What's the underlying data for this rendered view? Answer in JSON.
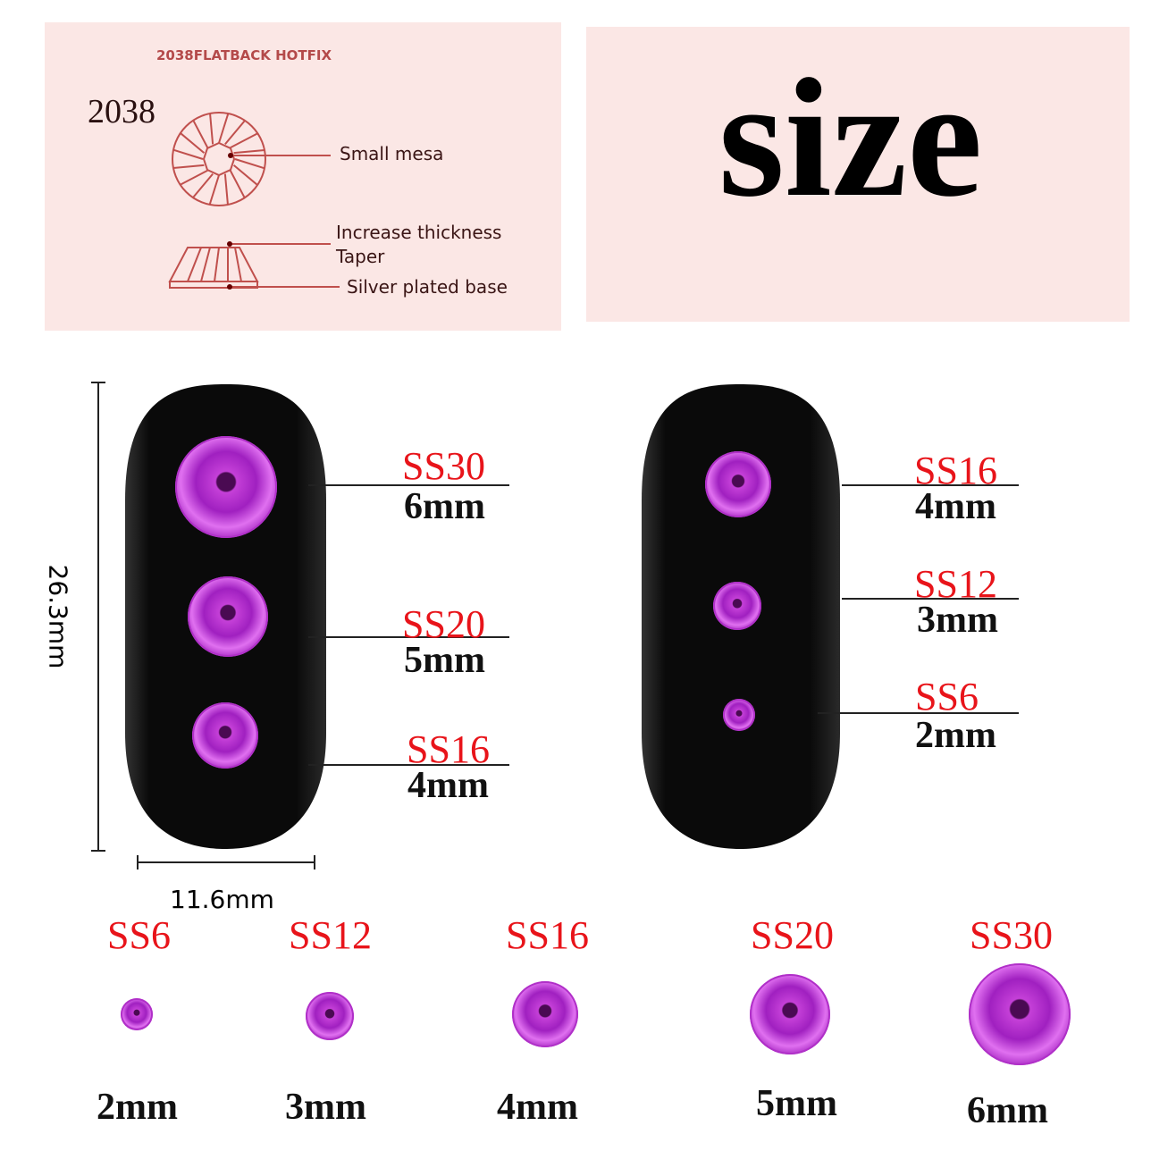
{
  "diagram": {
    "header_label": "2038FLATBACK HOTFIX",
    "model": "2038",
    "parts": [
      "Small mesa",
      "Increase thickness",
      "Taper",
      "Silver plated base"
    ]
  },
  "title": "size",
  "dimensions": {
    "height": "26.3mm",
    "width": "11.6mm"
  },
  "left_nail": [
    {
      "code": "SS30",
      "size": "6mm"
    },
    {
      "code": "SS20",
      "size": "5mm"
    },
    {
      "code": "SS16",
      "size": "4mm"
    }
  ],
  "right_nail": [
    {
      "code": "SS16",
      "size": "4mm"
    },
    {
      "code": "SS12",
      "size": "3mm"
    },
    {
      "code": "SS6",
      "size": "2mm"
    }
  ],
  "lineup": [
    {
      "code": "SS6",
      "size": "2mm"
    },
    {
      "code": "SS12",
      "size": "3mm"
    },
    {
      "code": "SS16",
      "size": "4mm"
    },
    {
      "code": "SS20",
      "size": "5mm"
    },
    {
      "code": "SS30",
      "size": "6mm"
    }
  ],
  "colors": {
    "panel": "#fbe7e5",
    "label_red": "#e8141a",
    "gem": "#b030c8",
    "diagram_line": "#c0504d"
  }
}
